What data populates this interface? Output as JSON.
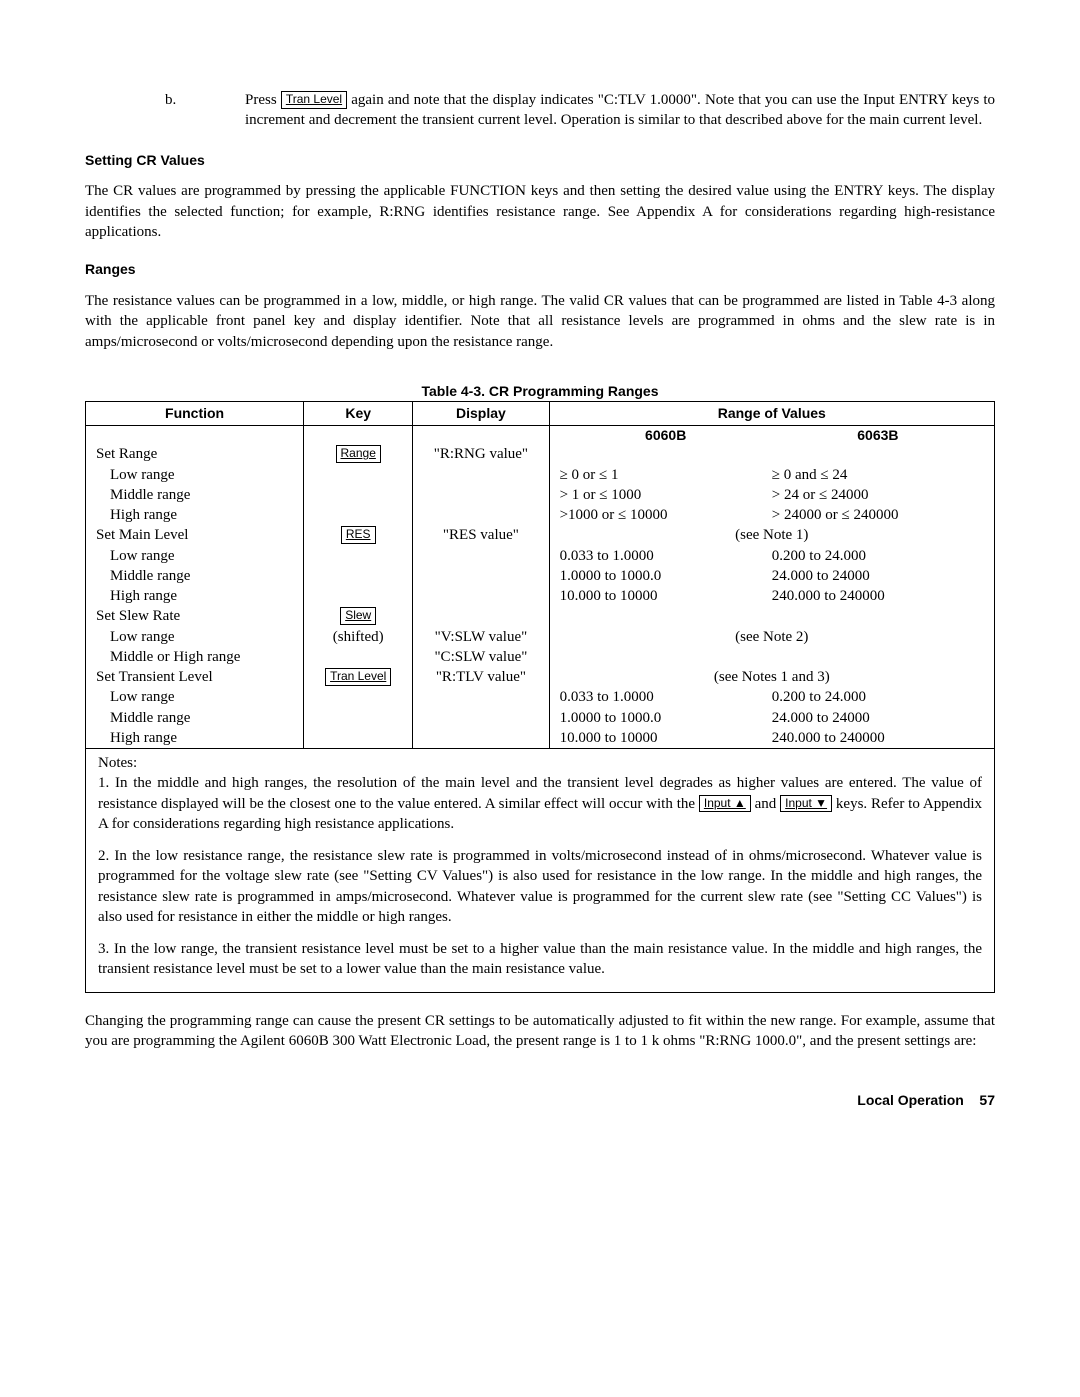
{
  "step_b": {
    "marker": "b.",
    "lead": "Press ",
    "key": "Tran Level",
    "rest": " again and note that the display indicates \"C:TLV 1.0000\". Note that you can use the Input ENTRY keys to increment and decrement the transient current level.  Operation is similar to that described above for the main current level."
  },
  "heading_cr": "Setting CR Values",
  "para_cr": "The CR values are programmed by pressing the applicable FUNCTION keys and then setting the desired value using the ENTRY keys.  The display identifies the selected function; for example, R:RNG identifies resistance range.  See Appendix A for considerations regarding high-resistance applications.",
  "heading_ranges": "Ranges",
  "para_ranges": "The resistance values can be programmed in a low, middle, or high range.  The valid CR values that can be programmed are listed in Table 4-3 along with the applicable front panel key and display identifier.  Note that all resistance levels are programmed in ohms and the slew rate is in amps/microsecond or volts/microsecond depending upon the resistance range.",
  "table": {
    "caption": "Table 4-3.  CR Programming Ranges",
    "headers": {
      "function": "Function",
      "key": "Key",
      "display": "Display",
      "range": "Range of Values"
    },
    "range_heads": {
      "a": "6060B",
      "b": "6063B"
    },
    "rows": [
      {
        "function": "Set Range",
        "indent": false,
        "key": "Range",
        "display": "\"R:RNG value\"",
        "a": "",
        "b": ""
      },
      {
        "function": "Low range",
        "indent": true,
        "key": "",
        "display": "",
        "a": "≥ 0 or  ≤ 1",
        "b": "≥ 0 and  ≤ 24"
      },
      {
        "function": "Middle range",
        "indent": true,
        "key": "",
        "display": "",
        "a": "> 1 or ≤ 1000",
        "b": "> 24 or ≤ 24000"
      },
      {
        "function": "High range",
        "indent": true,
        "key": "",
        "display": "",
        "a": ">1000 or  ≤ 10000",
        "b": "> 24000 or  ≤ 240000"
      },
      {
        "function": "Set Main Level",
        "indent": false,
        "key": "RES",
        "display": "\"RES value\"",
        "a": "",
        "b": "",
        "center_note": "(see Note 1)"
      },
      {
        "function": "Low range",
        "indent": true,
        "key": "",
        "display": "",
        "a": "0.033 to 1.0000",
        "b": "0.200 to 24.000"
      },
      {
        "function": "Middle range",
        "indent": true,
        "key": "",
        "display": "",
        "a": "1.0000 to 1000.0",
        "b": "24.000 to 24000"
      },
      {
        "function": "High range",
        "indent": true,
        "key": "",
        "display": "",
        "a": "10.000 to 10000",
        "b": "240.000 to 240000"
      },
      {
        "function": "Set Slew Rate",
        "indent": false,
        "key": "Slew",
        "display": "",
        "a": "",
        "b": ""
      },
      {
        "function": "Low range",
        "indent": true,
        "key": "(shifted)",
        "key_plain": true,
        "display": "\"V:SLW value\"",
        "a": "",
        "b": "",
        "center_note": "(see Note 2)"
      },
      {
        "function": "Middle or High range",
        "indent": true,
        "key": "",
        "display": "\"C:SLW value\"",
        "a": "",
        "b": ""
      },
      {
        "function": "Set Transient Level",
        "indent": false,
        "key": "Tran Level",
        "display": "\"R:TLV value\"",
        "a": "",
        "b": "",
        "center_note": "(see Notes 1 and 3)"
      },
      {
        "function": "Low range",
        "indent": true,
        "key": "",
        "display": "",
        "a": "0.033 to 1.0000",
        "b": "0.200 to 24.000"
      },
      {
        "function": "Middle range",
        "indent": true,
        "key": "",
        "display": "",
        "a": "1.0000 to 1000.0",
        "b": "24.000 to 24000"
      },
      {
        "function": "High range",
        "indent": true,
        "key": "",
        "display": "",
        "a": "10.000 to 10000",
        "b": "240.000 to 240000"
      }
    ]
  },
  "notes": {
    "label": "Notes:",
    "n1a": "1.   In the middle and high ranges, the resolution of the main level and the transient level degrades as higher values are entered.  The value of resistance displayed will be the closest one to the value entered.  A similar effect will occur with the ",
    "key_up": "Input ▲",
    "mid": " and ",
    "key_dn": "Input ▼",
    "n1b": " keys. Refer to Appendix A for considerations regarding high resistance applications.",
    "n2": "2.   In the low resistance range, the resistance slew rate is programmed in volts/microsecond instead of in ohms/microsecond.  Whatever value is programmed for the voltage slew rate (see \"Setting CV Values\") is also used for resistance in the low range.  In the middle and high ranges, the resistance slew rate is programmed in amps/microsecond.  Whatever value is programmed for the current slew rate (see \"Setting CC Values\") is also used for resistance in either the middle or high ranges.",
    "n3": "3.   In the low range, the transient resistance level must be set to a higher value than the main resistance value.  In the middle and high ranges, the transient resistance level must be set to a lower value than the main resistance value."
  },
  "para_after": "Changing the programming range can cause the present CR settings to be automatically adjusted to fit within the new range. For example, assume that you are programming the Agilent 6060B 300 Watt Electronic Load, the present range is 1 to 1 k ohms  \"R:RNG 1000.0\", and the present settings are:",
  "footer": {
    "label": "Local Operation",
    "page": "57"
  }
}
